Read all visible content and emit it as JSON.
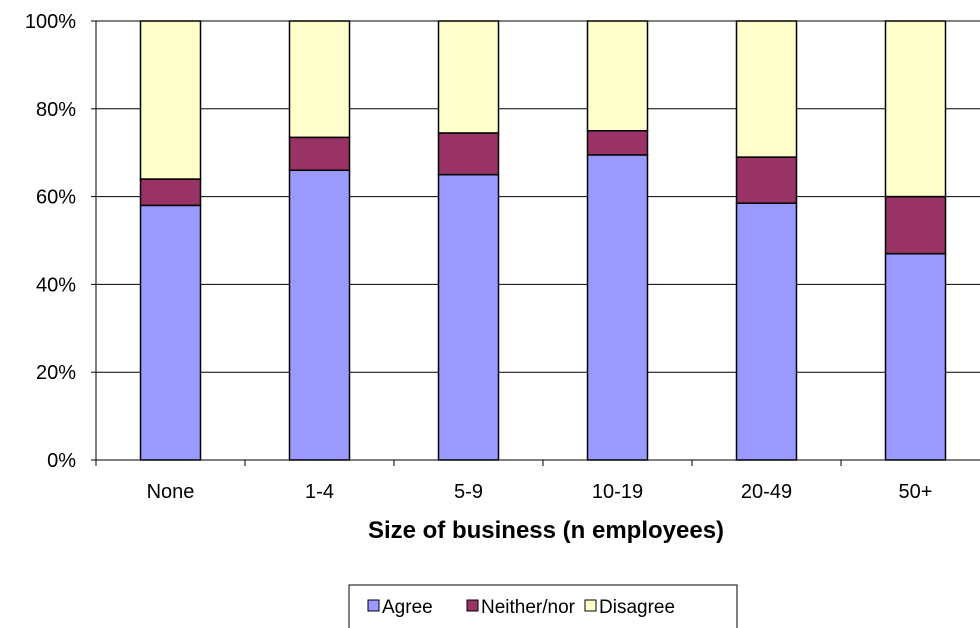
{
  "chart_data": {
    "type": "bar",
    "stacked": true,
    "percent_scale": true,
    "categories": [
      "None",
      "1-4",
      "5-9",
      "10-19",
      "20-49",
      "50+"
    ],
    "series": [
      {
        "name": "Agree",
        "values": [
          58,
          66,
          65,
          69.5,
          58.5,
          47
        ],
        "color": "#9999ff"
      },
      {
        "name": "Neither/nor",
        "values": [
          6,
          7.5,
          9.5,
          5.5,
          10.5,
          13
        ],
        "color": "#993366"
      },
      {
        "name": "Disagree",
        "values": [
          36,
          26.5,
          25.5,
          25,
          31,
          40
        ],
        "color": "#ffffcc"
      }
    ],
    "xlabel": "Size of business (n employees)",
    "ylabel": "",
    "ylim": [
      0,
      100
    ],
    "yticks": [
      "0%",
      "20%",
      "40%",
      "60%",
      "80%",
      "100%"
    ],
    "grid": true,
    "legend": "bottom"
  }
}
